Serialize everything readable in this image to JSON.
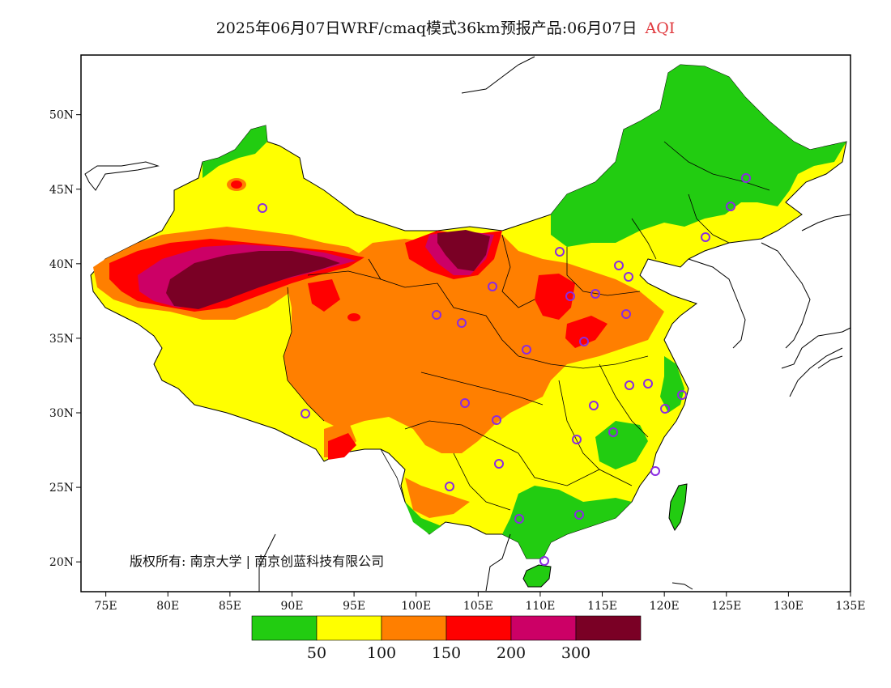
{
  "header": {
    "title": "2025年06月07日WRF/cmaq模式36km预报产品:06月07日",
    "variable": "AQI"
  },
  "copyright": {
    "prefix": "版权所有:",
    "org1": "南京大学",
    "separator": "|",
    "org2": "南京创蓝科技有限公司"
  },
  "map": {
    "lon_range": [
      73,
      135
    ],
    "lat_range": [
      18,
      54
    ],
    "lon_ticks": [
      "75E",
      "80E",
      "85E",
      "90E",
      "95E",
      "100E",
      "105E",
      "110E",
      "115E",
      "120E",
      "125E",
      "130E",
      "135E"
    ],
    "lat_ticks": [
      "50N",
      "45N",
      "40N",
      "35N",
      "30N",
      "25N",
      "20N"
    ],
    "lon_tick_values": [
      75,
      80,
      85,
      90,
      95,
      100,
      105,
      110,
      115,
      120,
      125,
      130,
      135
    ],
    "lat_tick_values": [
      50,
      45,
      40,
      35,
      30,
      25,
      20
    ],
    "station_color": "#8a2be2"
  },
  "legend": {
    "colors": [
      "#22cc11",
      "#ffff00",
      "#ff7f00",
      "#ff0000",
      "#cc0066",
      "#7a0025"
    ],
    "thresholds": [
      "50",
      "100",
      "150",
      "200",
      "300"
    ]
  }
}
